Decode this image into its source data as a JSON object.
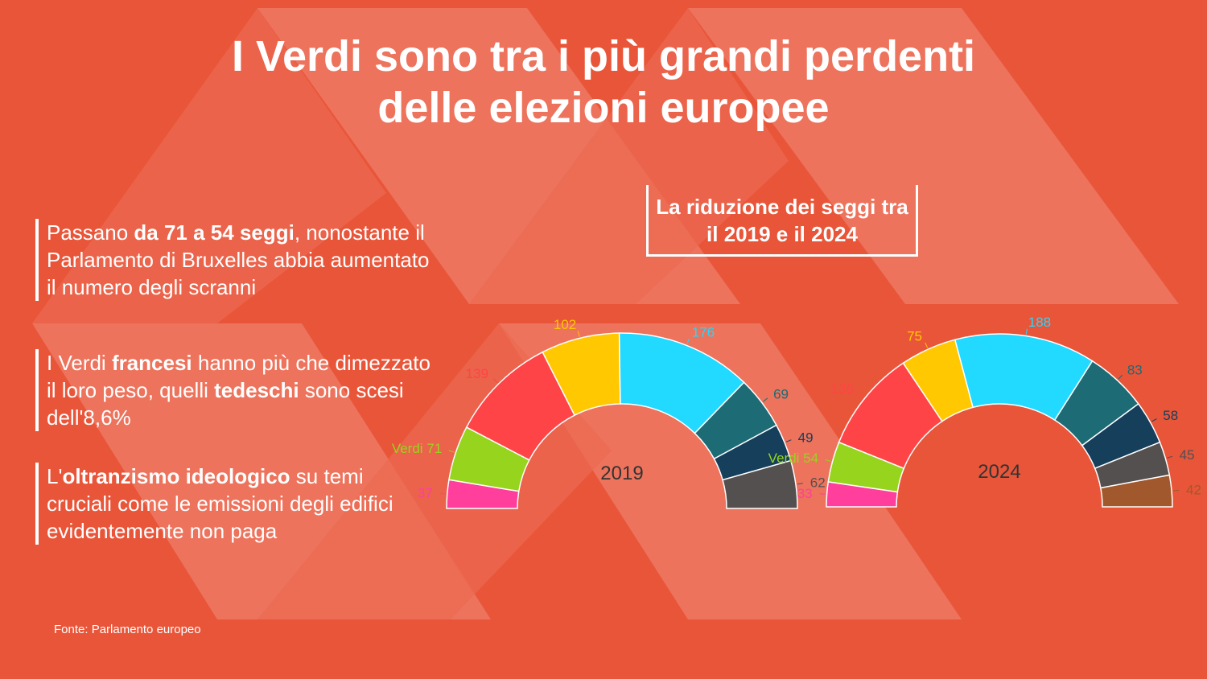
{
  "title": {
    "line1": "I Verdi sono tra i più grandi perdenti",
    "line2": "delle elezioni europee"
  },
  "paragraphs": [
    {
      "pre": "Passano ",
      "bold": "da 71 a 54 seggi",
      "post": ", nonostante il Parlamento di Bruxelles abbia aumentato il numero degli scranni"
    },
    {
      "pre": "I Verdi ",
      "bold": "francesi",
      "mid": " hanno più che dimezzato il loro peso, quelli ",
      "bold2": "tedeschi",
      "post": " sono scesi dell'8,6%"
    },
    {
      "pre": "L'",
      "bold": "oltranzismo ideologico",
      "post": " su temi cruciali come le emissioni degli edifici evidentemente non paga"
    }
  ],
  "subtitle_box": {
    "line1": "La riduzione dei seggi tra",
    "line2": "il 2019 e il 2024"
  },
  "source": "Fonte: Parlamento europeo",
  "colors": {
    "background": "#E95539",
    "bg_shape": "#EE7B65"
  },
  "chart_data": [
    {
      "type": "parliament-arc",
      "center_label": "2019",
      "seats": [
        {
          "label": "37",
          "value": 37,
          "color": "#FF3F9B"
        },
        {
          "label": "Verdi 71",
          "value": 71,
          "color": "#97D41E"
        },
        {
          "label": "139",
          "value": 139,
          "color": "#FF4447"
        },
        {
          "label": "102",
          "value": 102,
          "color": "#FFC800"
        },
        {
          "label": "176",
          "value": 176,
          "color": "#22D9FF"
        },
        {
          "label": "69",
          "value": 69,
          "color": "#1D6B75"
        },
        {
          "label": "49",
          "value": 49,
          "color": "#163F5C"
        },
        {
          "label": "62",
          "value": 62,
          "color": "#555050"
        }
      ]
    },
    {
      "type": "parliament-arc",
      "center_label": "2024",
      "seats": [
        {
          "label": "33",
          "value": 33,
          "color": "#FF3F9B"
        },
        {
          "label": "Verdi 54",
          "value": 54,
          "color": "#97D41E"
        },
        {
          "label": "136",
          "value": 136,
          "color": "#FF4447"
        },
        {
          "label": "75",
          "value": 75,
          "color": "#FFC800"
        },
        {
          "label": "188",
          "value": 188,
          "color": "#22D9FF"
        },
        {
          "label": "83",
          "value": 83,
          "color": "#1D6B75"
        },
        {
          "label": "58",
          "value": 58,
          "color": "#163F5C"
        },
        {
          "label": "45",
          "value": 45,
          "color": "#555050"
        },
        {
          "label": "42",
          "value": 42,
          "color": "#A0582C"
        }
      ]
    }
  ]
}
